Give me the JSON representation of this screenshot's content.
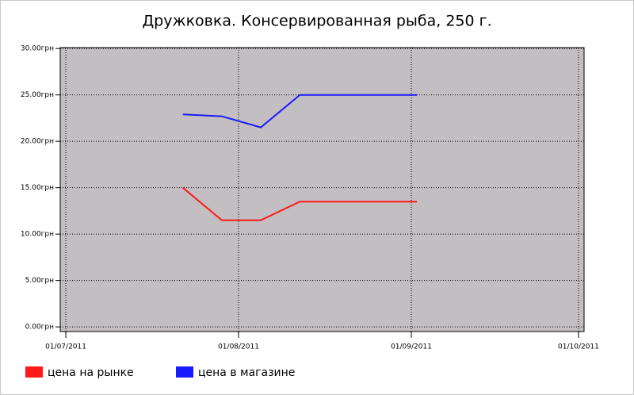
{
  "chart_data": {
    "type": "line",
    "title": "Дружковка. Консервированная рыба, 250 г.",
    "x": [
      "2011-07-22",
      "2011-07-29",
      "2011-08-05",
      "2011-08-12",
      "2011-08-19",
      "2011-08-26",
      "2011-09-02"
    ],
    "series": [
      {
        "name": "цена на рынке",
        "color": "#ff1a1a",
        "values": [
          15,
          11.5,
          11.5,
          13.5,
          13.5,
          13.5,
          13.5
        ]
      },
      {
        "name": "цена в магазине",
        "color": "#1a1aff",
        "values": [
          22.9,
          22.7,
          21.5,
          25,
          25,
          25,
          25
        ]
      }
    ],
    "xlim": [
      "2011-06-30",
      "2011-10-02"
    ],
    "xticks": [
      {
        "value": "2011-07-01",
        "label": "01/07/2011"
      },
      {
        "value": "2011-08-01",
        "label": "01/08/2011"
      },
      {
        "value": "2011-09-01",
        "label": "01/09/2011"
      },
      {
        "value": "2011-10-01",
        "label": "01/10/2011"
      }
    ],
    "ylim": [
      -0.5,
      30.1
    ],
    "yticks": [
      {
        "value": 0,
        "label": "0.00грн"
      },
      {
        "value": 5,
        "label": "5.00грн"
      },
      {
        "value": 10,
        "label": "10.00грн"
      },
      {
        "value": 15,
        "label": "15.00грн"
      },
      {
        "value": 20,
        "label": "20.00грн"
      },
      {
        "value": 25,
        "label": "25.00грн"
      },
      {
        "value": 30,
        "label": "30.00грн"
      }
    ],
    "grid": true,
    "legend": "bottom"
  }
}
